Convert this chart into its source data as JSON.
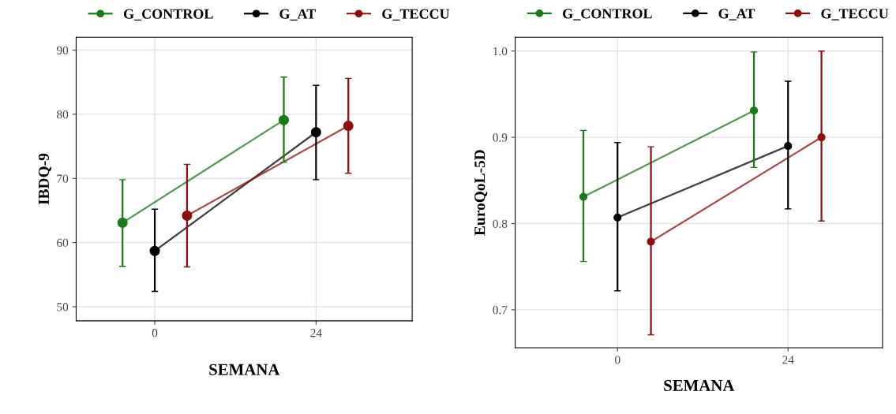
{
  "chart_data": [
    {
      "type": "line",
      "xlabel": "SEMANA",
      "ylabel": "IBDQ-9",
      "xlim": [
        -11.7,
        38.3
      ],
      "xticks": [
        0,
        24
      ],
      "ylim": [
        47.8,
        92
      ],
      "yticks": [
        50,
        60,
        70,
        80,
        90
      ],
      "grid": true,
      "legend": "top",
      "marker": "circle",
      "line_style": "solid",
      "series": [
        {
          "name": "G_CONTROL",
          "color": "#1a7a1a",
          "x": [
            -4.8,
            19.2
          ],
          "values": [
            63.1,
            79.1
          ],
          "errors": [
            [
              56.3,
              69.8
            ],
            [
              72.5,
              85.8
            ]
          ]
        },
        {
          "name": "G_AT",
          "color": "#000000",
          "x": [
            0,
            24
          ],
          "values": [
            58.7,
            77.2
          ],
          "errors": [
            [
              52.4,
              65.2
            ],
            [
              69.8,
              84.5
            ]
          ]
        },
        {
          "name": "G_TECCU",
          "color": "#8b0f0f",
          "x": [
            4.8,
            28.8
          ],
          "values": [
            64.2,
            78.2
          ],
          "errors": [
            [
              56.2,
              72.2
            ],
            [
              70.8,
              85.6
            ]
          ]
        }
      ]
    },
    {
      "type": "line",
      "xlabel": "SEMANA",
      "ylabel": "EuroQoL-5D",
      "xlim": [
        -14.4,
        37.3
      ],
      "xticks": [
        0,
        24
      ],
      "ylim": [
        0.656,
        1.016
      ],
      "yticks": [
        0.7,
        0.8,
        0.9,
        {
          "value": 1.0,
          "label": "1.0"
        }
      ],
      "grid": true,
      "legend": "top",
      "marker": "circle",
      "line_style": "solid",
      "series": [
        {
          "name": "G_CONTROL",
          "color": "#1a7a1a",
          "x": [
            -4.8,
            19.2
          ],
          "values": [
            0.831,
            0.931
          ],
          "errors": [
            [
              0.756,
              0.908
            ],
            [
              0.865,
              0.999
            ]
          ]
        },
        {
          "name": "G_AT",
          "color": "#000000",
          "x": [
            0,
            24
          ],
          "values": [
            0.807,
            0.89
          ],
          "errors": [
            [
              0.722,
              0.894
            ],
            [
              0.817,
              0.965
            ]
          ]
        },
        {
          "name": "G_TECCU",
          "color": "#8b0f0f",
          "x": [
            4.7,
            28.7
          ],
          "values": [
            0.779,
            0.9
          ],
          "errors": [
            [
              0.671,
              0.889
            ],
            [
              0.803,
              1.0
            ]
          ]
        }
      ]
    }
  ]
}
